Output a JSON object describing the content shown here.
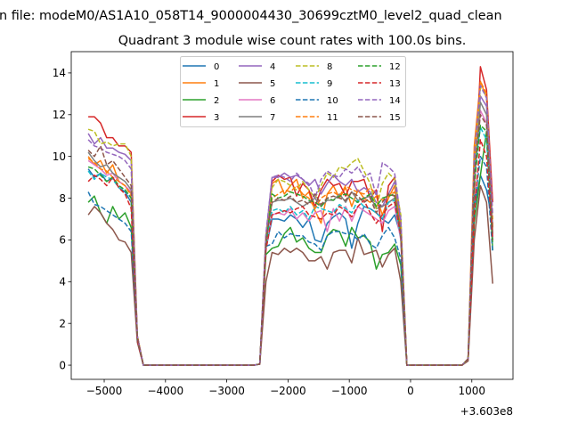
{
  "figure": {
    "suptitle": "n file: modeM0/AS1A10_058T14_9000004430_30699cztM0_level2_quad_clean"
  },
  "chart_data": {
    "type": "line",
    "title": "Quadrant 3 module wise count rates with 100.0s bins.",
    "xlabel": "",
    "ylabel": "",
    "x_offset_label": "+3.603e8",
    "xlim": [
      -5538,
      1672
    ],
    "ylim": [
      -0.68,
      15.02
    ],
    "xticks": [
      -5000,
      -4000,
      -3000,
      -2000,
      -1000,
      0,
      1000
    ],
    "xtick_labels": [
      "−5000",
      "−4000",
      "−3000",
      "−2000",
      "−1000",
      "0",
      "1000"
    ],
    "yticks": [
      0,
      2,
      4,
      6,
      8,
      10,
      12,
      14
    ],
    "ytick_labels": [
      "0",
      "2",
      "4",
      "6",
      "8",
      "10",
      "12",
      "14"
    ],
    "grid": false,
    "legend": {
      "placement": "upper-center",
      "columns": 4
    },
    "x": [
      -5260,
      -5160,
      -5060,
      -4960,
      -4860,
      -4760,
      -4660,
      -4560,
      -4460,
      -4360,
      -4260,
      -4160,
      -4060,
      -3960,
      -3860,
      -3760,
      -3660,
      -3560,
      -3460,
      -3360,
      -3260,
      -3160,
      -3060,
      -2960,
      -2860,
      -2760,
      -2660,
      -2560,
      -2460,
      -2360,
      -2260,
      -2160,
      -2060,
      -1960,
      -1860,
      -1760,
      -1660,
      -1560,
      -1460,
      -1360,
      -1260,
      -1160,
      -1060,
      -960,
      -860,
      -760,
      -660,
      -560,
      -460,
      -360,
      -260,
      -160,
      -60,
      40,
      140,
      240,
      340,
      440,
      540,
      640,
      740,
      840,
      940,
      1040,
      1140,
      1240,
      1340
    ],
    "series": [
      {
        "name": "0",
        "color": "#1f77b4",
        "dashed": false,
        "values": [
          9.4,
          9.0,
          9.2,
          8.8,
          9.0,
          8.5,
          8.3,
          7.8,
          1.3,
          0,
          0,
          0,
          0,
          0,
          0,
          0,
          0,
          0,
          0,
          0,
          0,
          0,
          0,
          0,
          0,
          0,
          0,
          0,
          0.05,
          5.6,
          7.0,
          7.0,
          6.9,
          7.2,
          7.0,
          6.6,
          7.0,
          6.0,
          5.9,
          6.8,
          7.1,
          7.3,
          7.0,
          5.6,
          6.8,
          7.6,
          7.5,
          7.3,
          7.0,
          6.8,
          7.2,
          6.2,
          0,
          0,
          0,
          0,
          0,
          0,
          0,
          0,
          0,
          0,
          0.3,
          7.5,
          9.1,
          8.4,
          6.8
        ]
      },
      {
        "name": "1",
        "color": "#ff7f0e",
        "dashed": false,
        "values": [
          10.0,
          9.6,
          9.8,
          9.2,
          9.6,
          8.8,
          8.6,
          8.2,
          1.4,
          0,
          0,
          0,
          0,
          0,
          0,
          0,
          0,
          0,
          0,
          0,
          0,
          0,
          0,
          0,
          0,
          0,
          0,
          0,
          0.05,
          5.7,
          8.7,
          8.9,
          8.2,
          8.6,
          8.9,
          8.0,
          8.3,
          7.4,
          6.8,
          8.2,
          8.6,
          8.0,
          8.5,
          7.6,
          8.4,
          8.0,
          7.8,
          8.1,
          7.2,
          8.0,
          8.6,
          6.4,
          0,
          0,
          0,
          0,
          0,
          0,
          0,
          0,
          0,
          0,
          0.3,
          10.5,
          13.6,
          12.8,
          6.5
        ]
      },
      {
        "name": "2",
        "color": "#2ca02c",
        "dashed": false,
        "values": [
          7.8,
          8.1,
          7.3,
          6.8,
          7.6,
          7.0,
          7.3,
          6.6,
          1.2,
          0,
          0,
          0,
          0,
          0,
          0,
          0,
          0,
          0,
          0,
          0,
          0,
          0,
          0,
          0,
          0,
          0,
          0,
          0,
          0.05,
          5.3,
          5.6,
          5.7,
          6.3,
          6.6,
          5.9,
          6.1,
          5.6,
          5.4,
          5.4,
          6.2,
          6.5,
          6.4,
          5.7,
          6.6,
          6.1,
          6.2,
          5.9,
          4.6,
          5.3,
          5.4,
          5.8,
          4.8,
          0,
          0,
          0,
          0,
          0,
          0,
          0,
          0,
          0,
          0,
          0.3,
          6.8,
          9.1,
          11.2,
          5.5
        ]
      },
      {
        "name": "3",
        "color": "#d62728",
        "dashed": false,
        "values": [
          11.9,
          11.9,
          11.6,
          10.9,
          10.9,
          10.5,
          10.5,
          10.2,
          1.4,
          0,
          0,
          0,
          0,
          0,
          0,
          0,
          0,
          0,
          0,
          0,
          0,
          0,
          0,
          0,
          0,
          0,
          0,
          0,
          0.05,
          6.0,
          8.8,
          9.1,
          8.9,
          9.0,
          8.1,
          8.7,
          8.4,
          7.6,
          8.4,
          8.9,
          8.6,
          8.7,
          8.1,
          8.8,
          8.8,
          8.9,
          8.0,
          8.4,
          6.4,
          8.6,
          9.0,
          6.7,
          0,
          0,
          0,
          0,
          0,
          0,
          0,
          0,
          0,
          0,
          0.3,
          8.0,
          14.3,
          13.2,
          7.8
        ]
      },
      {
        "name": "4",
        "color": "#9467bd",
        "dashed": false,
        "values": [
          11.1,
          10.6,
          10.9,
          10.4,
          10.4,
          10.2,
          10.1,
          9.8,
          1.3,
          0,
          0,
          0,
          0,
          0,
          0,
          0,
          0,
          0,
          0,
          0,
          0,
          0,
          0,
          0,
          0,
          0,
          0,
          0,
          0.05,
          6.2,
          9.0,
          9.0,
          9.2,
          9.0,
          9.1,
          8.9,
          8.6,
          8.9,
          8.2,
          8.7,
          9.1,
          8.8,
          8.6,
          8.9,
          8.3,
          8.5,
          8.3,
          7.8,
          7.6,
          8.2,
          8.8,
          6.9,
          0,
          0,
          0,
          0,
          0,
          0,
          0,
          0,
          0,
          0,
          0.3,
          9.0,
          12.9,
          12.4,
          6.6
        ]
      },
      {
        "name": "5",
        "color": "#8c564b",
        "dashed": false,
        "values": [
          7.2,
          7.6,
          7.3,
          6.8,
          6.5,
          6.0,
          5.9,
          5.4,
          1.1,
          0,
          0,
          0,
          0,
          0,
          0,
          0,
          0,
          0,
          0,
          0,
          0,
          0,
          0,
          0,
          0,
          0,
          0,
          0,
          0.05,
          4.0,
          5.4,
          5.3,
          5.6,
          5.4,
          5.6,
          5.4,
          5.0,
          5.0,
          5.2,
          4.6,
          5.4,
          5.5,
          5.5,
          4.9,
          6.1,
          5.3,
          5.4,
          5.5,
          4.7,
          5.3,
          5.6,
          4.0,
          0,
          0,
          0,
          0,
          0,
          0,
          0,
          0,
          0,
          0,
          0.2,
          6.0,
          8.6,
          7.8,
          3.9
        ]
      },
      {
        "name": "6",
        "color": "#e377c2",
        "dashed": false,
        "values": [
          9.8,
          9.6,
          9.4,
          9.1,
          9.2,
          8.8,
          8.6,
          8.3,
          1.3,
          0,
          0,
          0,
          0,
          0,
          0,
          0,
          0,
          0,
          0,
          0,
          0,
          0,
          0,
          0,
          0,
          0,
          0,
          0,
          0.05,
          5.7,
          7.2,
          7.3,
          7.2,
          7.5,
          7.0,
          7.3,
          6.9,
          7.3,
          7.4,
          6.4,
          7.5,
          6.9,
          7.6,
          6.9,
          7.6,
          7.4,
          7.2,
          7.0,
          6.8,
          7.4,
          7.6,
          6.0,
          0,
          0,
          0,
          0,
          0,
          0,
          0,
          0,
          0,
          0,
          0.3,
          8.5,
          12.2,
          11.6,
          6.2
        ]
      },
      {
        "name": "7",
        "color": "#7f7f7f",
        "dashed": false,
        "values": [
          10.2,
          9.8,
          9.5,
          9.6,
          9.2,
          9.0,
          8.8,
          8.4,
          1.3,
          0,
          0,
          0,
          0,
          0,
          0,
          0,
          0,
          0,
          0,
          0,
          0,
          0,
          0,
          0,
          0,
          0,
          0,
          0,
          0.05,
          6.0,
          7.8,
          7.9,
          7.9,
          8.0,
          7.8,
          7.6,
          7.8,
          8.0,
          7.6,
          7.9,
          7.9,
          8.2,
          7.8,
          8.3,
          7.9,
          8.0,
          8.1,
          7.5,
          7.6,
          7.8,
          8.0,
          6.2,
          0,
          0,
          0,
          0,
          0,
          0,
          0,
          0,
          0,
          0,
          0.3,
          9.0,
          12.6,
          12.0,
          6.0
        ]
      },
      {
        "name": "8",
        "color": "#bcbd22",
        "dashed": true,
        "values": [
          11.3,
          11.2,
          10.6,
          10.7,
          10.5,
          10.6,
          10.6,
          10.0,
          1.4,
          0,
          0,
          0,
          0,
          0,
          0,
          0,
          0,
          0,
          0,
          0,
          0,
          0,
          0,
          0,
          0,
          0,
          0,
          0,
          0.05,
          6.2,
          8.5,
          8.9,
          8.8,
          8.6,
          8.4,
          8.8,
          8.4,
          8.0,
          8.6,
          9.2,
          9.0,
          9.5,
          9.4,
          9.7,
          9.9,
          9.3,
          8.7,
          7.5,
          8.7,
          9.2,
          8.9,
          7.2,
          0,
          0,
          0,
          0,
          0,
          0,
          0,
          0,
          0,
          0,
          0.3,
          9.5,
          13.3,
          12.9,
          7.0
        ]
      },
      {
        "name": "9",
        "color": "#17becf",
        "dashed": true,
        "values": [
          9.3,
          8.9,
          9.2,
          9.0,
          8.9,
          8.5,
          8.4,
          8.0,
          1.3,
          0,
          0,
          0,
          0,
          0,
          0,
          0,
          0,
          0,
          0,
          0,
          0,
          0,
          0,
          0,
          0,
          0,
          0,
          0,
          0.05,
          5.8,
          7.4,
          7.5,
          7.3,
          7.6,
          7.2,
          7.4,
          7.0,
          7.6,
          7.5,
          7.4,
          7.3,
          7.7,
          7.5,
          7.3,
          7.9,
          7.6,
          7.5,
          7.3,
          7.0,
          7.8,
          7.9,
          6.1,
          0,
          0,
          0,
          0,
          0,
          0,
          0,
          0,
          0,
          0,
          0.3,
          9.3,
          11.4,
          10.8,
          6.0
        ]
      },
      {
        "name": "10",
        "color": "#1f77b4",
        "dashed": true,
        "values": [
          8.3,
          7.7,
          7.6,
          7.4,
          7.2,
          7.0,
          6.8,
          6.4,
          1.2,
          0,
          0,
          0,
          0,
          0,
          0,
          0,
          0,
          0,
          0,
          0,
          0,
          0,
          0,
          0,
          0,
          0,
          0,
          0,
          0.05,
          5.7,
          5.8,
          6.4,
          6.1,
          6.3,
          6.2,
          6.2,
          5.9,
          5.8,
          5.5,
          6.2,
          6.4,
          6.4,
          6.3,
          6.3,
          6.0,
          6.3,
          5.8,
          5.6,
          6.2,
          6.6,
          6.1,
          5.1,
          0,
          0,
          0,
          0,
          0,
          0,
          0,
          0,
          0,
          0,
          0.3,
          7.6,
          10.0,
          9.5,
          5.4
        ]
      },
      {
        "name": "11",
        "color": "#ff7f0e",
        "dashed": true,
        "values": [
          9.9,
          9.7,
          9.4,
          9.3,
          9.0,
          8.8,
          8.6,
          8.1,
          1.3,
          0,
          0,
          0,
          0,
          0,
          0,
          0,
          0,
          0,
          0,
          0,
          0,
          0,
          0,
          0,
          0,
          0,
          0,
          0,
          0.05,
          6.0,
          8.0,
          8.2,
          8.4,
          8.3,
          8.6,
          8.2,
          8.0,
          7.5,
          8.0,
          8.2,
          8.3,
          8.1,
          8.6,
          8.4,
          8.3,
          8.2,
          8.5,
          8.2,
          7.9,
          8.1,
          8.3,
          6.5,
          0,
          0,
          0,
          0,
          0,
          0,
          0,
          0,
          0,
          0,
          0.3,
          9.8,
          13.6,
          13.0,
          6.6
        ]
      },
      {
        "name": "12",
        "color": "#2ca02c",
        "dashed": true,
        "values": [
          9.5,
          9.4,
          9.1,
          8.8,
          9.0,
          8.6,
          8.4,
          8.0,
          1.3,
          0,
          0,
          0,
          0,
          0,
          0,
          0,
          0,
          0,
          0,
          0,
          0,
          0,
          0,
          0,
          0,
          0,
          0,
          0,
          0.05,
          5.8,
          8.2,
          8.0,
          8.1,
          8.3,
          8.2,
          8.1,
          7.9,
          7.8,
          7.6,
          8.0,
          7.9,
          8.1,
          8.2,
          8.0,
          7.8,
          8.0,
          8.2,
          7.6,
          8.0,
          8.1,
          8.2,
          6.3,
          0,
          0,
          0,
          0,
          0,
          0,
          0,
          0,
          0,
          0,
          0.3,
          8.6,
          11.5,
          11.2,
          5.8
        ]
      },
      {
        "name": "13",
        "color": "#d62728",
        "dashed": true,
        "values": [
          8.8,
          9.1,
          8.9,
          8.6,
          9.0,
          8.5,
          8.2,
          7.5,
          1.2,
          0,
          0,
          0,
          0,
          0,
          0,
          0,
          0,
          0,
          0,
          0,
          0,
          0,
          0,
          0,
          0,
          0,
          0,
          0,
          0.05,
          5.5,
          7.2,
          7.3,
          7.4,
          7.3,
          7.5,
          7.6,
          7.2,
          7.1,
          7.0,
          7.3,
          7.2,
          7.6,
          7.4,
          7.1,
          7.6,
          7.9,
          7.3,
          6.8,
          7.2,
          7.6,
          7.8,
          6.2,
          0,
          0,
          0,
          0,
          0,
          0,
          0,
          0,
          0,
          0,
          0.3,
          7.2,
          10.8,
          10.0,
          6.0
        ]
      },
      {
        "name": "14",
        "color": "#9467bd",
        "dashed": true,
        "values": [
          10.8,
          10.5,
          10.4,
          10.2,
          10.1,
          10.0,
          9.8,
          9.4,
          1.4,
          0,
          0,
          0,
          0,
          0,
          0,
          0,
          0,
          0,
          0,
          0,
          0,
          0,
          0,
          0,
          0,
          0,
          0,
          0,
          0.05,
          6.3,
          9.0,
          9.1,
          9.0,
          8.8,
          9.2,
          8.9,
          8.7,
          8.0,
          8.9,
          9.3,
          9.1,
          9.0,
          9.4,
          9.2,
          9.5,
          9.0,
          9.2,
          8.1,
          9.7,
          9.5,
          9.2,
          7.0,
          0,
          0,
          0,
          0,
          0,
          0,
          0,
          0,
          0,
          0,
          0.3,
          10.0,
          13.4,
          12.8,
          7.2
        ]
      },
      {
        "name": "15",
        "color": "#8c564b",
        "dashed": true,
        "values": [
          10.3,
          10.0,
          10.5,
          9.6,
          9.8,
          9.4,
          9.0,
          8.6,
          1.3,
          0,
          0,
          0,
          0,
          0,
          0,
          0,
          0,
          0,
          0,
          0,
          0,
          0,
          0,
          0,
          0,
          0,
          0,
          0,
          0.05,
          6.0,
          7.8,
          8.0,
          7.9,
          8.1,
          7.8,
          7.9,
          7.7,
          8.2,
          7.7,
          8.0,
          8.1,
          8.0,
          7.9,
          8.3,
          8.1,
          7.8,
          8.0,
          7.3,
          7.8,
          8.2,
          8.1,
          6.3,
          0,
          0,
          0,
          0,
          0,
          0,
          0,
          0,
          0,
          0,
          0.3,
          9.2,
          12.0,
          11.5,
          6.3
        ]
      }
    ]
  }
}
